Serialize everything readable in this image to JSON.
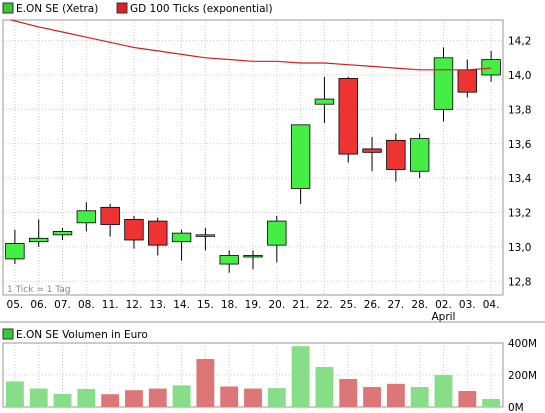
{
  "legend_main": [
    {
      "label": "E.ON SE (Xetra)",
      "color": "#33cc33"
    },
    {
      "label": "GD 100 Ticks (exponential)",
      "color": "#e02020"
    }
  ],
  "legend_volume": {
    "label": "E.ON SE Volumen in Euro",
    "color": "#33cc33"
  },
  "tick_note": "1 Tick = 1 Tag",
  "colors": {
    "up": "#44ee44",
    "down": "#ee3333",
    "ma": "#cc2222",
    "vol_up": "#88dd88",
    "vol_down": "#dd7777",
    "grid": "#cccccc"
  },
  "chart_data": [
    {
      "type": "candlestick",
      "categories": [
        "05.",
        "06.",
        "07.",
        "08.",
        "11.",
        "12.",
        "13.",
        "14.",
        "15.",
        "18.",
        "19.",
        "20.",
        "21.",
        "22.",
        "25.",
        "26.",
        "27.",
        "28.",
        "02.",
        "03.",
        "04."
      ],
      "category_sublabels": {
        "02.": "April"
      },
      "ylim": [
        12.72,
        14.32
      ],
      "yticks": [
        12.8,
        13.0,
        13.2,
        13.4,
        13.6,
        13.8,
        14.0,
        14.2
      ],
      "ytick_labels": [
        "12,8",
        "13,0",
        "13,2",
        "13,4",
        "13,6",
        "13,8",
        "14,0",
        "14,2"
      ],
      "series": [
        {
          "name": "E.ON SE (Xetra)",
          "open": [
            12.93,
            13.03,
            13.07,
            13.14,
            13.23,
            13.16,
            13.15,
            13.03,
            13.07,
            12.9,
            12.95,
            13.01,
            13.34,
            13.83,
            13.98,
            13.57,
            13.62,
            13.44,
            13.8,
            14.03,
            14.0
          ],
          "high": [
            13.1,
            13.16,
            13.11,
            13.26,
            13.25,
            13.18,
            13.17,
            13.1,
            13.11,
            12.98,
            12.98,
            13.18,
            13.7,
            13.99,
            13.99,
            13.64,
            13.66,
            13.66,
            14.16,
            14.09,
            14.14
          ],
          "low": [
            12.9,
            13.0,
            13.04,
            13.09,
            13.06,
            12.99,
            12.95,
            12.92,
            12.98,
            12.85,
            12.87,
            12.91,
            13.25,
            13.72,
            13.49,
            13.44,
            13.38,
            13.4,
            13.73,
            13.87,
            13.96
          ],
          "close": [
            13.02,
            13.05,
            13.09,
            13.21,
            13.13,
            13.04,
            13.01,
            13.08,
            13.07,
            12.95,
            12.95,
            13.15,
            13.71,
            13.86,
            13.54,
            13.55,
            13.45,
            13.63,
            14.1,
            13.9,
            14.09
          ]
        },
        {
          "name": "GD 100 Ticks (exponential)",
          "values": [
            14.32,
            14.28,
            14.25,
            14.22,
            14.19,
            14.16,
            14.14,
            14.12,
            14.1,
            14.09,
            14.08,
            14.08,
            14.07,
            14.07,
            14.06,
            14.05,
            14.04,
            14.03,
            14.03,
            14.03,
            14.04
          ]
        }
      ]
    },
    {
      "type": "bar",
      "title": "E.ON SE Volumen in Euro",
      "categories": [
        "05.",
        "06.",
        "07.",
        "08.",
        "11.",
        "12.",
        "13.",
        "14.",
        "15.",
        "18.",
        "19.",
        "20.",
        "21.",
        "22.",
        "25.",
        "26.",
        "27.",
        "28.",
        "02.",
        "03.",
        "04."
      ],
      "values": [
        160,
        115,
        82,
        113,
        80,
        105,
        115,
        135,
        300,
        128,
        115,
        118,
        380,
        250,
        175,
        125,
        145,
        125,
        200,
        100,
        50
      ],
      "direction": [
        "up",
        "up",
        "up",
        "up",
        "down",
        "down",
        "down",
        "up",
        "down",
        "down",
        "down",
        "up",
        "up",
        "up",
        "down",
        "down",
        "down",
        "up",
        "up",
        "down",
        "up"
      ],
      "ylim": [
        0,
        400
      ],
      "yticks": [
        0,
        200,
        400
      ],
      "ytick_labels": [
        "0M",
        "200M",
        "400M"
      ]
    }
  ]
}
